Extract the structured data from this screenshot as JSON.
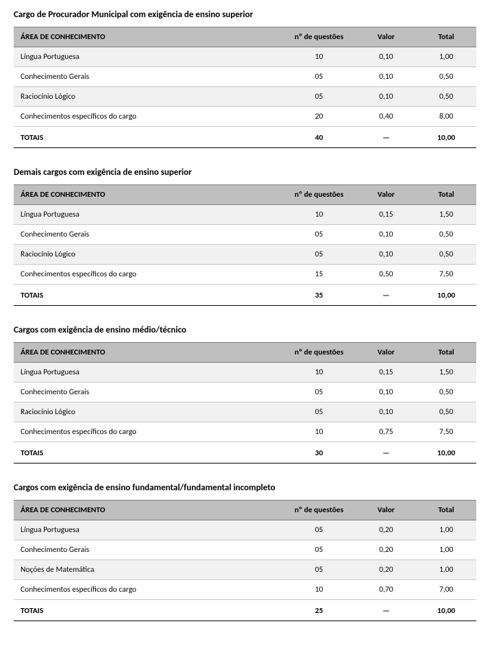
{
  "colors": {
    "header_bg": "#bfbfbf",
    "row_even_bg": "#f1f1f1",
    "row_odd_bg": "#ffffff",
    "header_border": "#7d7d7d",
    "row_border": "#c7c7c7",
    "footer_border": "#000000",
    "text": "#000000",
    "page_bg": "#ffffff"
  },
  "typography": {
    "font_family": "Calibri, Arial, sans-serif",
    "title_size_pt": 13,
    "header_size_pt": 11.5,
    "cell_size_pt": 11.5
  },
  "columns": {
    "area": "ÁREA DE CONHECIMENTO",
    "questoes": "nº de questões",
    "valor": "Valor",
    "total": "Total"
  },
  "totals_label": "TOTAIS",
  "sections": [
    {
      "title": "Cargo de Procurador Municipal com exigência de ensino superior",
      "rows": [
        {
          "area": "Língua Portuguesa",
          "questoes": "10",
          "valor": "0,10",
          "total": "1,00"
        },
        {
          "area": "Conhecimento Gerais",
          "questoes": "05",
          "valor": "0,10",
          "total": "0,50"
        },
        {
          "area": "Raciocínio Lógico",
          "questoes": "05",
          "valor": "0,10",
          "total": "0,50"
        },
        {
          "area": "Conhecimentos específicos do cargo",
          "questoes": "20",
          "valor": "0,40",
          "total": "8,00"
        }
      ],
      "totals": {
        "questoes": "40",
        "valor": "—",
        "total": "10,00"
      }
    },
    {
      "title": "Demais cargos com exigência de ensino superior",
      "rows": [
        {
          "area": "Língua Portuguesa",
          "questoes": "10",
          "valor": "0,15",
          "total": "1,50"
        },
        {
          "area": "Conhecimento Gerais",
          "questoes": "05",
          "valor": "0,10",
          "total": "0,50"
        },
        {
          "area": "Raciocínio Lógico",
          "questoes": "05",
          "valor": "0,10",
          "total": "0,50"
        },
        {
          "area": "Conhecimentos específicos do cargo",
          "questoes": "15",
          "valor": "0,50",
          "total": "7,50"
        }
      ],
      "totals": {
        "questoes": "35",
        "valor": "—",
        "total": "10,00"
      }
    },
    {
      "title": "Cargos com exigência de ensino médio/técnico",
      "rows": [
        {
          "area": "Língua Portuguesa",
          "questoes": "10",
          "valor": "0,15",
          "total": "1,50"
        },
        {
          "area": "Conhecimento Gerais",
          "questoes": "05",
          "valor": "0,10",
          "total": "0,50"
        },
        {
          "area": "Raciocínio Lógico",
          "questoes": "05",
          "valor": "0,10",
          "total": "0,50"
        },
        {
          "area": "Conhecimentos específicos do cargo",
          "questoes": "10",
          "valor": "0,75",
          "total": "7,50"
        }
      ],
      "totals": {
        "questoes": "30",
        "valor": "—",
        "total": "10,00"
      }
    },
    {
      "title": "Cargos com exigência de ensino fundamental/fundamental incompleto",
      "rows": [
        {
          "area": "Língua Portuguesa",
          "questoes": "05",
          "valor": "0,20",
          "total": "1,00"
        },
        {
          "area": "Conhecimento Gerais",
          "questoes": "05",
          "valor": "0,20",
          "total": "1,00"
        },
        {
          "area": "Noções de Matemática",
          "questoes": "05",
          "valor": "0,20",
          "total": "1,00"
        },
        {
          "area": "Conhecimentos específicos do cargo",
          "questoes": "10",
          "valor": "0,70",
          "total": "7,00"
        }
      ],
      "totals": {
        "questoes": "25",
        "valor": "—",
        "total": "10,00"
      }
    }
  ]
}
